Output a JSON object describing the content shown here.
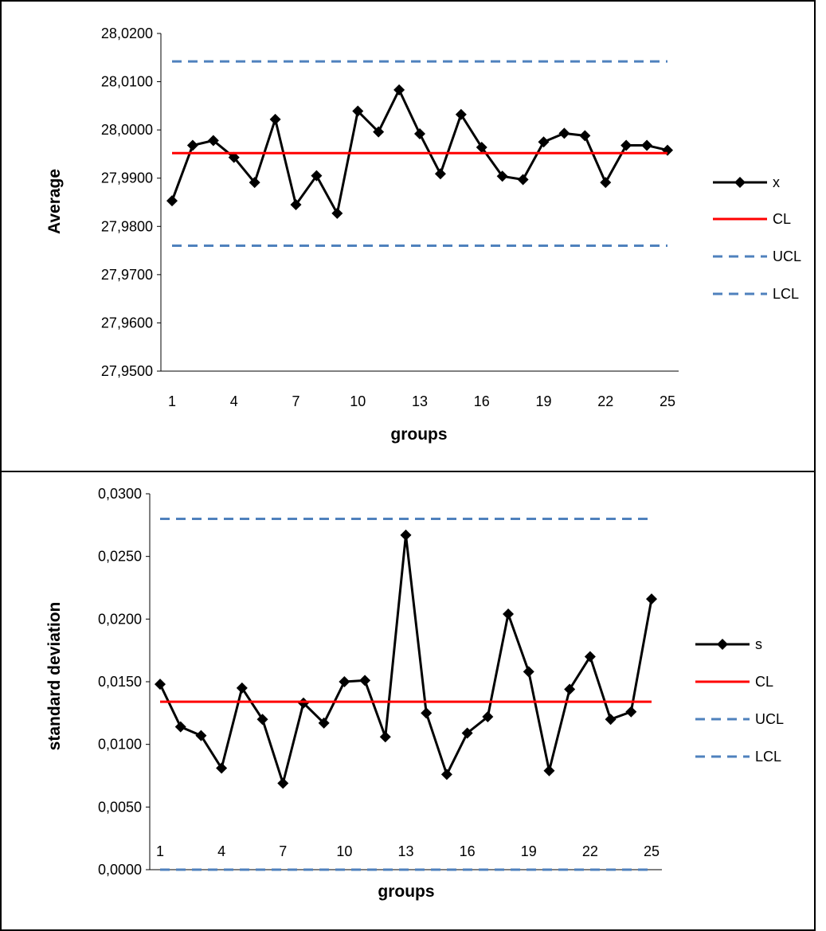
{
  "chart_data": [
    {
      "type": "line",
      "title": "",
      "xlabel": "groups",
      "ylabel": "Average",
      "x_tick_labels": [
        "1",
        "4",
        "7",
        "10",
        "13",
        "16",
        "19",
        "22",
        "25"
      ],
      "y_tick_labels": [
        "27,9500",
        "27,9600",
        "27,9700",
        "27,9800",
        "27,9900",
        "28,0000",
        "28,0100",
        "28,0200"
      ],
      "ylim": [
        27.95,
        28.02
      ],
      "xlim": [
        1,
        25
      ],
      "grid": false,
      "legend_position": "right",
      "series": [
        {
          "name": "x",
          "color": "#000000",
          "style": "solid-diamond",
          "x": [
            1,
            2,
            3,
            4,
            5,
            6,
            7,
            8,
            9,
            10,
            11,
            12,
            13,
            14,
            15,
            16,
            17,
            18,
            19,
            20,
            21,
            22,
            23,
            24,
            25
          ],
          "values": [
            27.9853,
            27.9968,
            27.9978,
            27.9943,
            27.9891,
            28.0022,
            27.9845,
            27.9905,
            27.9827,
            28.0039,
            27.9996,
            28.0083,
            27.9992,
            27.9909,
            28.0032,
            27.9964,
            27.9904,
            27.9897,
            27.9975,
            27.9993,
            27.9988,
            27.9891,
            27.9968,
            27.9968,
            27.9958
          ]
        },
        {
          "name": "CL",
          "color": "#ff0000",
          "style": "solid",
          "value": 27.9952
        },
        {
          "name": "UCL",
          "color": "#4f81bd",
          "style": "dashed",
          "value": 28.0142
        },
        {
          "name": "LCL",
          "color": "#4f81bd",
          "style": "dashed",
          "value": 27.976
        }
      ]
    },
    {
      "type": "line",
      "title": "",
      "xlabel": "groups",
      "ylabel": "standard deviation",
      "x_tick_labels": [
        "1",
        "4",
        "7",
        "10",
        "13",
        "16",
        "19",
        "22",
        "25"
      ],
      "y_tick_labels": [
        "0,0000",
        "0,0050",
        "0,0100",
        "0,0150",
        "0,0200",
        "0,0250",
        "0,0300"
      ],
      "ylim": [
        0,
        0.03
      ],
      "xlim": [
        1,
        25
      ],
      "grid": false,
      "legend_position": "right",
      "series": [
        {
          "name": "s",
          "color": "#000000",
          "style": "solid-diamond",
          "x": [
            1,
            2,
            3,
            4,
            5,
            6,
            7,
            8,
            9,
            10,
            11,
            12,
            13,
            14,
            15,
            16,
            17,
            18,
            19,
            20,
            21,
            22,
            23,
            24,
            25
          ],
          "values": [
            0.0148,
            0.0114,
            0.0107,
            0.0081,
            0.0145,
            0.012,
            0.0069,
            0.0133,
            0.0117,
            0.015,
            0.0151,
            0.0106,
            0.0267,
            0.0125,
            0.0076,
            0.0109,
            0.0122,
            0.0204,
            0.0158,
            0.0079,
            0.0144,
            0.017,
            0.012,
            0.0126,
            0.0216
          ]
        },
        {
          "name": "CL",
          "color": "#ff0000",
          "style": "solid",
          "value": 0.0134
        },
        {
          "name": "UCL",
          "color": "#4f81bd",
          "style": "dashed",
          "value": 0.028
        },
        {
          "name": "LCL",
          "color": "#4f81bd",
          "style": "dashed",
          "value": 0.0
        }
      ]
    }
  ]
}
